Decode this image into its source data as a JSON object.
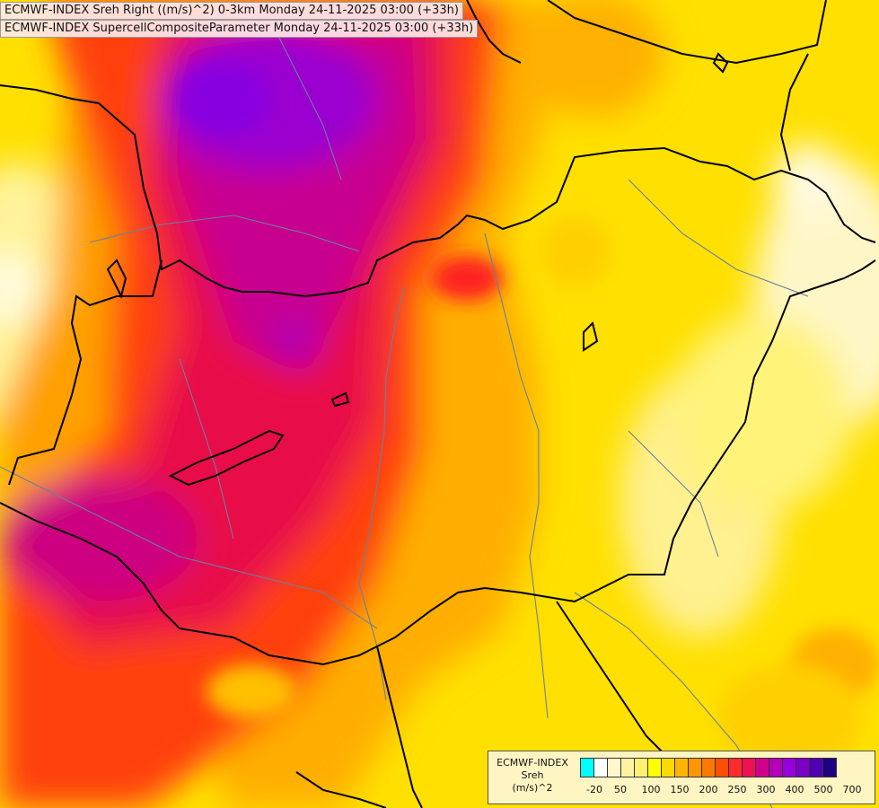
{
  "header": {
    "line1": "ECMWF-INDEX Sreh Right ((m/s)^2) 0-3km Monday 24-11-2025 03:00 (+33h)",
    "line2": "ECMWF-INDEX SupercellCompositeParameter Monday 24-11-2025 03:00 (+33h)"
  },
  "legend": {
    "title_line1": "ECMWF-INDEX",
    "title_line2": "Sreh",
    "title_line3": "(m/s)^2",
    "swatch_colors": [
      "#00ffff",
      "#ffffff",
      "#fff7cc",
      "#fff3a0",
      "#fff070",
      "#ffff00",
      "#ffd800",
      "#ffb400",
      "#ff9600",
      "#ff7800",
      "#ff5000",
      "#ff2a2a",
      "#ee1050",
      "#d0008a",
      "#b400b4",
      "#9600dc",
      "#7a00c8",
      "#5000b0",
      "#1e0080"
    ],
    "tick_labels": [
      "-20",
      "50",
      "100",
      "150",
      "200",
      "250",
      "300",
      "400",
      "500",
      "700"
    ]
  },
  "map_colors": {
    "background": "#ffe400",
    "border_line": "#000000",
    "river_line": "#6a80a0"
  }
}
